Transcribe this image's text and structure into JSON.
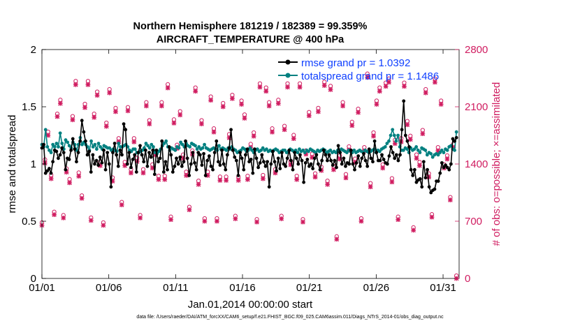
{
  "chart_data": {
    "type": "line",
    "title": "Northern Hemisphere 181219 / 182389 = 99.359%",
    "subtitle": "AIRCRAFT_TEMPERATURE @ 400 hPa",
    "xlabel": "Jan.01,2014 00:00:00 start",
    "ylabel_left": "rmse and totalspread",
    "ylabel_right": "# of obs: o=possible; ×=assimilated",
    "xlim": [
      0,
      31.2
    ],
    "ylim_left": [
      0,
      2
    ],
    "ylim_right": [
      0,
      2800
    ],
    "x_ticks": [
      0,
      5,
      10,
      15,
      20,
      25,
      30
    ],
    "x_tick_labels": [
      "01/01",
      "01/06",
      "01/11",
      "01/16",
      "01/21",
      "01/26",
      "01/31"
    ],
    "y_ticks_left": [
      0,
      0.5,
      1,
      1.5,
      2
    ],
    "y_tick_labels_left": [
      "0",
      "0.5",
      "1",
      "1.5",
      "2"
    ],
    "y_ticks_right": [
      0,
      700,
      1400,
      2100,
      2800
    ],
    "y_tick_labels_right": [
      "0",
      "700",
      "1400",
      "2100",
      "2800"
    ],
    "colors": {
      "rmse": "#000000",
      "spread": "#008080",
      "obs": "#d01c60",
      "legend_text": "#1040ff"
    },
    "legend": [
      {
        "name": "rmse grand pr = 1.0392",
        "color": "#000000"
      },
      {
        "name": "totalspread grand pr = 1.1486",
        "color": "#008080"
      }
    ],
    "footnote": "data file: /Users/raeder/DAI/ATM_forcXX/CAM6_setup/f.e21.FHIST_BGC.f09_025.CAM6assim.011/Diags_NTrS_2014-01/obs_diag_output.nc",
    "series": [
      {
        "name": "rmse",
        "axis": "left",
        "values": [
          1.14,
          1.17,
          0.92,
          0.94,
          0.96,
          0.92,
          1.02,
          1.12,
          1.11,
          1.05,
          1.08,
          1.14,
          1.1,
          0.95,
          1.05,
          1.04,
          1.12,
          1.22,
          1.13,
          1.02,
          1.1,
          1.2,
          1.38,
          1.28,
          1.2,
          1.08,
          1.11,
          0.93,
          1.08,
          1.0,
          1.03,
          0.99,
          1.06,
          1.01,
          1.12,
          0.95,
          1.1,
          1.0,
          0.8,
          1.1,
          1.18,
          1.08,
          0.98,
          1.12,
          1.08,
          1.35,
          1.3,
          1.0,
          1.1,
          0.97,
          1.04,
          1.08,
          0.93,
          1.1,
          1.16,
          1.08,
          1.02,
          1.12,
          0.98,
          1.1,
          1.06,
          1.12,
          0.91,
          1.12,
          1.02,
          1.05,
          1.2,
          0.93,
          1.02,
          0.95,
          1.15,
          1.08,
          0.93,
          0.98,
          1.05,
          1.0,
          1.06,
          0.98,
          1.02,
          1.2,
          1.05,
          0.9,
          1.0,
          1.1,
          1.01,
          0.95,
          1.1,
          1.08,
          0.99,
          1.09,
          0.9,
          1.03,
          1.07,
          0.98,
          0.95,
          1.1,
          1.2,
          1.02,
          0.99,
          1.12,
          1.0,
          0.95,
          1.08,
          1.14,
          1.3,
          1.12,
          1.06,
          1.03,
          0.9,
          1.1,
          1.05,
          0.95,
          1.08,
          1.13,
          1.02,
          1.04,
          0.92,
          1.13,
          1.05,
          0.97,
          1.01,
          1.08,
          1.02,
          0.98,
          1.02,
          0.8,
          1.0,
          1.11,
          1.02,
          0.94,
          1.05,
          0.96,
          1.1,
          1.0,
          0.98,
          1.05,
          1.12,
          1.03,
          0.95,
          1.1,
          1.05,
          1.0,
          1.08,
          1.03,
          0.84,
          1.01,
          1.04,
          0.98,
          1.0,
          0.96,
          1.05,
          1.08,
          1.0,
          0.95,
          1.03,
          1.12,
          1.08,
          1.03,
          1.08,
          1.03,
          0.99,
          1.03,
          0.97,
          1.16,
          1.1,
          1.0,
          1.05,
          0.98,
          1.01,
          1.0,
          1.12,
          1.0,
          0.95,
          1.01,
          1.07,
          0.98,
          1.05,
          1.09,
          1.03,
          0.98,
          1.13,
          1.05,
          1.02,
          1.2,
          1.1,
          1.03,
          1.03,
          1.08,
          1.04,
          1.01,
          1.0,
          1.07,
          1.15,
          1.1,
          1.05,
          1.08,
          1.03,
          1.08,
          1.3,
          1.55,
          1.25,
          1.2,
          1.15,
          0.95,
          0.9,
          0.95,
          0.84,
          0.86,
          0.87,
          0.8,
          1.02,
          0.88,
          0.95,
          0.8,
          0.75,
          0.77,
          0.78,
          0.85,
          0.85,
          0.92,
          1.01,
          0.97,
          0.99,
          0.97,
          0.95,
          1.0,
          1.22,
          1.2,
          1.23
        ]
      },
      {
        "name": "totalspread",
        "axis": "left",
        "values": [
          1.17,
          1.15,
          1.3,
          1.15,
          1.12,
          1.1,
          1.17,
          1.15,
          1.18,
          1.15,
          1.27,
          1.18,
          1.13,
          1.21,
          1.19,
          1.16,
          1.14,
          1.19,
          1.17,
          1.12,
          1.17,
          1.23,
          1.17,
          1.19,
          1.17,
          1.15,
          1.12,
          1.2,
          1.15,
          1.17,
          1.13,
          1.18,
          1.15,
          1.13,
          1.16,
          1.15,
          1.14,
          1.14,
          1.12,
          1.13,
          1.12,
          1.11,
          1.18,
          1.15,
          1.15,
          1.16,
          1.17,
          1.15,
          1.12,
          1.11,
          1.13,
          1.13,
          1.1,
          1.1,
          1.11,
          1.12,
          1.14,
          1.18,
          1.16,
          1.14,
          1.17,
          1.15,
          1.1,
          1.09,
          1.11,
          1.13,
          1.16,
          1.18,
          1.2,
          1.15,
          1.12,
          1.14,
          1.13,
          1.12,
          1.15,
          1.14,
          1.19,
          1.17,
          1.15,
          1.18,
          1.16,
          1.15,
          1.18,
          1.17,
          1.16,
          1.13,
          1.15,
          1.13,
          1.14,
          1.17,
          1.14,
          1.13,
          1.12,
          1.13,
          1.14,
          1.13,
          1.12,
          1.16,
          1.13,
          1.14,
          1.13,
          1.12,
          1.14,
          1.13,
          1.15,
          1.13,
          1.12,
          1.1,
          1.11,
          1.12,
          1.14,
          1.13,
          1.11,
          1.12,
          1.14,
          1.12,
          1.1,
          1.12,
          1.13,
          1.11,
          1.12,
          1.14,
          1.12,
          1.13,
          1.11,
          1.12,
          1.11,
          1.12,
          1.13,
          1.12,
          1.1,
          1.11,
          1.12,
          1.12,
          1.1,
          1.11,
          1.13,
          1.12,
          1.11,
          1.12,
          1.1,
          1.13,
          1.11,
          1.12,
          1.1,
          1.12,
          1.11,
          1.13,
          1.12,
          1.11,
          1.1,
          1.12,
          1.11,
          1.12,
          1.13,
          1.12,
          1.1,
          1.11,
          1.12,
          1.1,
          1.11,
          1.1,
          1.12,
          1.11,
          1.13,
          1.12,
          1.11,
          1.1,
          1.12,
          1.11,
          1.1,
          1.12,
          1.1,
          1.11,
          1.12,
          1.11,
          1.1,
          1.12,
          1.11,
          1.1,
          1.11,
          1.12,
          1.13,
          1.1,
          1.12,
          1.11,
          1.13,
          1.14,
          1.15,
          1.18,
          1.2,
          1.25,
          1.3,
          1.25,
          1.2,
          1.25,
          1.15,
          1.12,
          1.12,
          1.14,
          1.13,
          1.1,
          1.14,
          1.12,
          1.13,
          1.15,
          1.12,
          1.1,
          1.14,
          1.13,
          1.12,
          1.08,
          1.1,
          1.09,
          1.06,
          1.08,
          1.09,
          1.08,
          1.1,
          1.12,
          1.1,
          1.13,
          1.12,
          1.15,
          1.16,
          1.13,
          1.12,
          1.28
        ]
      },
      {
        "name": "obs possible (o)",
        "axis": "right",
        "values": [
          650,
          1420,
          1760,
          1230,
          780,
          1980,
          2150,
          740,
          1310,
          1180,
          1950,
          2380,
          1260,
          980,
          2100,
          2380,
          710,
          1980,
          2250,
          1390,
          650,
          1870,
          2280,
          1200,
          2050,
          1680,
          900,
          1390,
          2060,
          1300,
          1680,
          1440,
          740,
          1300,
          2120,
          1900,
          1360,
          1520,
          1220,
          2120,
          1220,
          2340,
          720,
          1910,
          1600,
          2010,
          1480,
          1270,
          840,
          1530,
          2300,
          1160,
          1900,
          700,
          1270,
          2190,
          1800,
          700,
          1210,
          2110,
          1210,
          1730,
          2210,
          730,
          1210,
          2140,
          1970,
          1220,
          1610,
          1750,
          690,
          2350,
          1230,
          2300,
          2120,
          1800,
          1300,
          2150,
          730,
          1830,
          2350,
          1400,
          1720,
          1220,
          2350,
          690,
          1530,
          2000,
          1490,
          1250,
          2050,
          1330,
          2370,
          1160,
          2320,
          1340,
          480,
          1470,
          2120,
          1240,
          1580,
          1880,
          1430,
          2040,
          700,
          1570,
          2470,
          1130,
          1750,
          2140,
          2300,
          1360,
          2360,
          2410,
          1190,
          1660,
          720,
          1680,
          2360,
          1890,
          1710,
          590,
          1480,
          1390,
          1780,
          2280,
          1250,
          750,
          2410,
          1570,
          2140,
          1360,
          1470,
          960,
          1610,
          0
        ]
      },
      {
        "name": "obs assimilated (x)",
        "axis": "right",
        "values": [
          650,
          1410,
          1750,
          1220,
          780,
          1980,
          2140,
          740,
          1300,
          1170,
          1940,
          2370,
          1250,
          980,
          2090,
          2370,
          710,
          1970,
          2240,
          1380,
          650,
          1860,
          2270,
          1190,
          2040,
          1670,
          900,
          1380,
          2050,
          1290,
          1670,
          1430,
          740,
          1290,
          2110,
          1890,
          1350,
          1510,
          1210,
          2110,
          1210,
          2330,
          720,
          1900,
          1590,
          2000,
          1470,
          1260,
          840,
          1520,
          2290,
          1150,
          1890,
          700,
          1260,
          2180,
          1790,
          700,
          1200,
          2100,
          1200,
          1720,
          2200,
          730,
          1200,
          2130,
          1960,
          1210,
          1600,
          1740,
          690,
          2340,
          1220,
          2290,
          2110,
          1790,
          1290,
          2140,
          730,
          1820,
          2340,
          1390,
          1710,
          1210,
          2340,
          690,
          1520,
          1990,
          1480,
          1240,
          2040,
          1320,
          2360,
          1150,
          2310,
          1330,
          480,
          1460,
          2110,
          1230,
          1570,
          1870,
          1420,
          2030,
          700,
          1560,
          2460,
          1120,
          1740,
          2130,
          2290,
          1350,
          2350,
          2400,
          1180,
          1650,
          720,
          1670,
          2350,
          1880,
          1700,
          590,
          1470,
          1380,
          1770,
          2270,
          1240,
          750,
          2400,
          1560,
          2130,
          1350,
          1460,
          960,
          1600,
          0
        ]
      }
    ]
  }
}
